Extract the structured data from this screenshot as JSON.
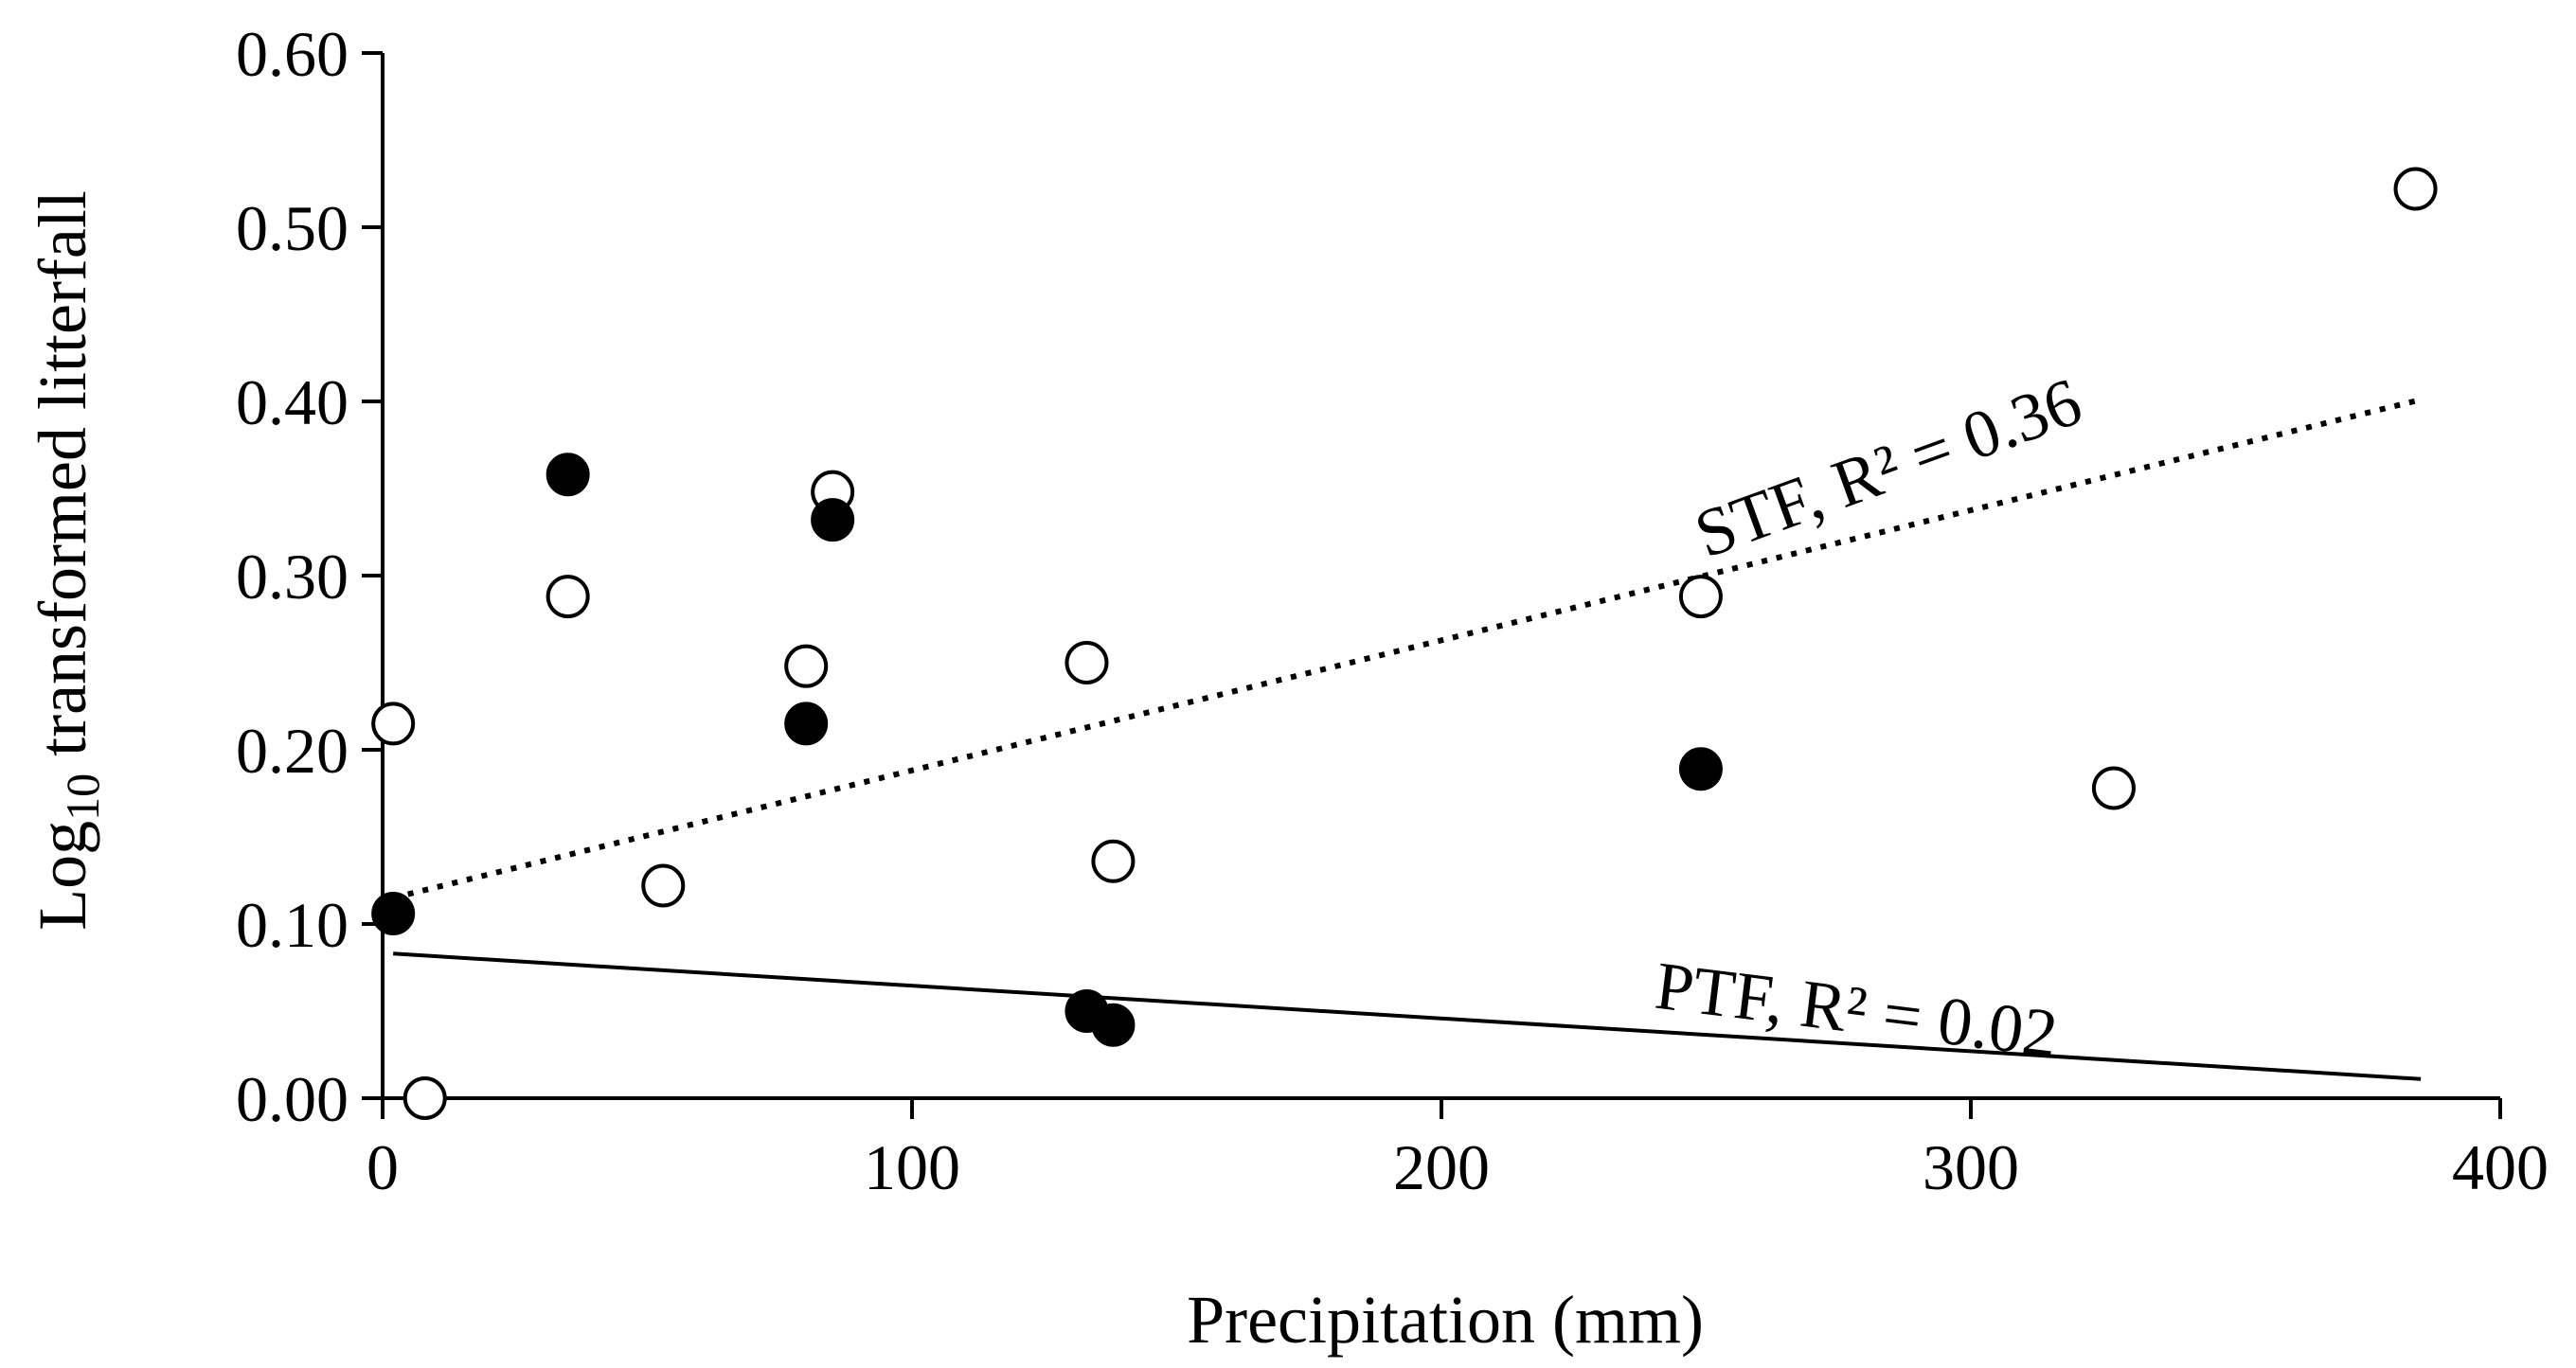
{
  "chart_data": {
    "type": "scatter",
    "title": "",
    "xlabel": "Precipitation (mm)",
    "ylabel": {
      "prefix": "Log",
      "subscript": "10",
      "suffix": " transformed litterfall"
    },
    "xlim": [
      0,
      400
    ],
    "ylim": [
      0,
      0.6
    ],
    "xticks": [
      0,
      100,
      200,
      300,
      400
    ],
    "xtick_labels": [
      "0",
      "100",
      "200",
      "300",
      "400"
    ],
    "yticks": [
      0,
      0.1,
      0.2,
      0.3,
      0.4,
      0.5,
      0.6
    ],
    "ytick_labels": [
      "0.00",
      "0.10",
      "0.20",
      "0.30",
      "0.40",
      "0.50",
      "0.60"
    ],
    "grid": false,
    "series": [
      {
        "name": "STF",
        "marker": "open-circle",
        "points": [
          {
            "x": 2,
            "y": 0.215
          },
          {
            "x": 8,
            "y": 0.0
          },
          {
            "x": 35,
            "y": 0.288
          },
          {
            "x": 53,
            "y": 0.122
          },
          {
            "x": 80,
            "y": 0.248
          },
          {
            "x": 85,
            "y": 0.348
          },
          {
            "x": 133,
            "y": 0.25
          },
          {
            "x": 138,
            "y": 0.136
          },
          {
            "x": 249,
            "y": 0.288
          },
          {
            "x": 327,
            "y": 0.178
          },
          {
            "x": 384,
            "y": 0.522
          }
        ]
      },
      {
        "name": "PTF",
        "marker": "filled-circle",
        "points": [
          {
            "x": 2,
            "y": 0.106
          },
          {
            "x": 35,
            "y": 0.358
          },
          {
            "x": 80,
            "y": 0.215
          },
          {
            "x": 85,
            "y": 0.332
          },
          {
            "x": 133,
            "y": 0.05
          },
          {
            "x": 138,
            "y": 0.042
          },
          {
            "x": 249,
            "y": 0.189
          }
        ]
      }
    ],
    "trendlines": [
      {
        "series": "STF",
        "style": "dotted",
        "x": [
          2,
          385
        ],
        "y": [
          0.115,
          0.401
        ],
        "label": "STF, R² = 0.36",
        "label_anchor": {
          "x": 250,
          "y": 0.31
        },
        "label_angle_deg": -20
      },
      {
        "series": "PTF",
        "style": "solid",
        "x": [
          2,
          385
        ],
        "y": [
          0.083,
          0.011
        ],
        "label": "PTF, R² = 0.02",
        "label_anchor": {
          "x": 240,
          "y": 0.052
        },
        "label_angle_deg": 7
      }
    ],
    "colors": {
      "axis": "#000000",
      "marker_fill_open": "#ffffff",
      "marker_fill_solid": "#000000",
      "line": "#000000"
    }
  }
}
